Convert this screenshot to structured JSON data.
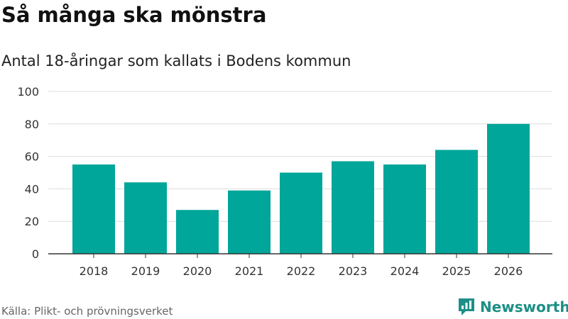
{
  "header": {
    "title": "Så många ska mönstra",
    "subtitle": "Antal 18-åringar som kallats i Bodens kommun"
  },
  "footer": {
    "source": "Källa: Plikt- och prövningsverket",
    "brand": "Newsworthy"
  },
  "colors": {
    "bar": "#00a699",
    "grid": "#dddddd",
    "axis": "#333333",
    "brand": "#1d8f86"
  },
  "chart_data": {
    "type": "bar",
    "title": "Så många ska mönstra",
    "subtitle": "Antal 18-åringar som kallats i Bodens kommun",
    "categories": [
      "2018",
      "2019",
      "2020",
      "2021",
      "2022",
      "2023",
      "2024",
      "2025",
      "2026"
    ],
    "values": [
      55,
      44,
      27,
      39,
      50,
      57,
      55,
      64,
      80
    ],
    "xlabel": "",
    "ylabel": "",
    "ylim": [
      0,
      100
    ],
    "yticks": [
      0,
      20,
      40,
      60,
      80,
      100
    ],
    "grid": true,
    "legend": "none"
  }
}
